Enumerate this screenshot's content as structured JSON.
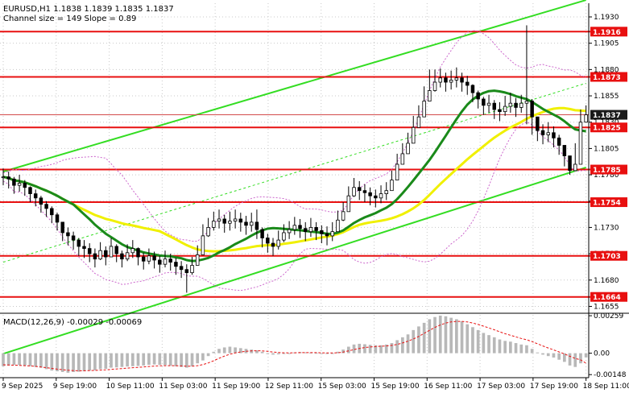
{
  "chart_data": [
    {
      "type": "candlestick",
      "symbol_header": "EURUSD,H1  1.1838 1.1839 1.1835 1.1837",
      "info_line": "Channel size = 149 Slope = 0.89",
      "ylim": [
        1.165,
        1.1943
      ],
      "y_ticks": [
        "1.1930",
        "1.1905",
        "1.1880",
        "1.1855",
        "1.1830",
        "1.1805",
        "1.1780",
        "1.1755",
        "1.1730",
        "1.1705",
        "1.1680",
        "1.1655"
      ],
      "x_ticks": [
        "9 Sep 2025",
        "9 Sep 19:00",
        "10 Sep 11:00",
        "11 Sep 03:00",
        "11 Sep 19:00",
        "12 Sep 11:00",
        "15 Sep 03:00",
        "15 Sep 19:00",
        "16 Sep 11:00",
        "17 Sep 03:00",
        "17 Sep 19:00",
        "18 Sep 11:00"
      ],
      "current_price": {
        "label": "1.1837",
        "value": 1.1837
      },
      "levels": [
        {
          "label": "1.1916",
          "value": 1.1916
        },
        {
          "label": "1.1873",
          "value": 1.1873
        },
        {
          "label": "1.1825",
          "value": 1.1825
        },
        {
          "label": "1.1785",
          "value": 1.1785
        },
        {
          "label": "1.1754",
          "value": 1.1754
        },
        {
          "label": "1.1703",
          "value": 1.1703
        },
        {
          "label": "1.1664",
          "value": 1.1664
        }
      ],
      "channel": {
        "upper": [
          [
            0,
            1.1783
          ],
          [
            108,
            1.1946
          ]
        ],
        "lower": [
          [
            0,
            1.161
          ],
          [
            108,
            1.1787
          ]
        ],
        "mid": [
          [
            0,
            1.1697
          ],
          [
            108,
            1.1867
          ]
        ]
      },
      "close": [
        1.1778,
        1.1776,
        1.177,
        1.1772,
        1.1768,
        1.1762,
        1.1758,
        1.1752,
        1.1748,
        1.1742,
        1.1735,
        1.1725,
        1.1722,
        1.1718,
        1.1712,
        1.171,
        1.1705,
        1.17,
        1.1708,
        1.1702,
        1.1712,
        1.1705,
        1.17,
        1.1706,
        1.171,
        1.1702,
        1.1698,
        1.1703,
        1.1699,
        1.1695,
        1.17,
        1.1697,
        1.1693,
        1.169,
        1.1687,
        1.1694,
        1.1704,
        1.1722,
        1.173,
        1.1736,
        1.1738,
        1.1734,
        1.1736,
        1.1738,
        1.1735,
        1.1732,
        1.1735,
        1.1728,
        1.172,
        1.1715,
        1.1712,
        1.1718,
        1.1725,
        1.1728,
        1.1732,
        1.1729,
        1.1726,
        1.173,
        1.1727,
        1.1724,
        1.1722,
        1.1726,
        1.1737,
        1.1745,
        1.176,
        1.1768,
        1.1765,
        1.1763,
        1.176,
        1.1758,
        1.1762,
        1.1765,
        1.1775,
        1.179,
        1.18,
        1.181,
        1.1825,
        1.1835,
        1.185,
        1.186,
        1.1868,
        1.1872,
        1.1868,
        1.187,
        1.1872,
        1.1868,
        1.1865,
        1.1858,
        1.1852,
        1.1846,
        1.1848,
        1.1842,
        1.184,
        1.1845,
        1.1848,
        1.1844,
        1.1848,
        1.185,
        1.1835,
        1.1822,
        1.1818,
        1.182,
        1.1815,
        1.1808,
        1.1798,
        1.1784,
        1.179,
        1.183,
        1.1837
      ],
      "high": [
        1.1786,
        1.1783,
        1.1778,
        1.178,
        1.1775,
        1.1769,
        1.1766,
        1.176,
        1.1755,
        1.175,
        1.1744,
        1.1734,
        1.173,
        1.1726,
        1.172,
        1.1718,
        1.1715,
        1.171,
        1.1716,
        1.1712,
        1.172,
        1.1714,
        1.1708,
        1.1714,
        1.1718,
        1.1711,
        1.1706,
        1.171,
        1.1707,
        1.1703,
        1.1708,
        1.1705,
        1.1701,
        1.1698,
        1.1695,
        1.1702,
        1.1713,
        1.1733,
        1.1739,
        1.1745,
        1.1747,
        1.1742,
        1.1745,
        1.1747,
        1.1744,
        1.1741,
        1.1744,
        1.1747,
        1.173,
        1.1724,
        1.172,
        1.1727,
        1.1733,
        1.1736,
        1.174,
        1.1738,
        1.1735,
        1.1739,
        1.1735,
        1.1732,
        1.1731,
        1.1735,
        1.1746,
        1.1754,
        1.1769,
        1.1777,
        1.1774,
        1.1771,
        1.1768,
        1.1766,
        1.177,
        1.1773,
        1.1784,
        1.18,
        1.181,
        1.182,
        1.1836,
        1.1846,
        1.1864,
        1.188,
        1.188,
        1.1881,
        1.1877,
        1.1879,
        1.1882,
        1.1877,
        1.1874,
        1.1866,
        1.186,
        1.1854,
        1.1856,
        1.1851,
        1.1849,
        1.1855,
        1.1858,
        1.1853,
        1.1856,
        1.1922,
        1.1852,
        1.1834,
        1.1828,
        1.183,
        1.1826,
        1.1818,
        1.1808,
        1.1795,
        1.181,
        1.1842,
        1.1846
      ],
      "low": [
        1.177,
        1.1767,
        1.1762,
        1.1764,
        1.176,
        1.1754,
        1.175,
        1.1744,
        1.174,
        1.1734,
        1.1727,
        1.1717,
        1.1713,
        1.1709,
        1.1703,
        1.1701,
        1.1697,
        1.1692,
        1.1699,
        1.1694,
        1.1703,
        1.1697,
        1.1692,
        1.1698,
        1.1701,
        1.1694,
        1.169,
        1.1695,
        1.1691,
        1.1687,
        1.1692,
        1.1689,
        1.1685,
        1.1682,
        1.1668,
        1.1685,
        1.1696,
        1.1713,
        1.1721,
        1.1727,
        1.1729,
        1.1725,
        1.1727,
        1.1729,
        1.1726,
        1.1723,
        1.1726,
        1.1719,
        1.1711,
        1.1706,
        1.1703,
        1.1709,
        1.1716,
        1.1719,
        1.1723,
        1.172,
        1.1717,
        1.1721,
        1.1718,
        1.1715,
        1.1713,
        1.1717,
        1.1728,
        1.1736,
        1.1751,
        1.1759,
        1.1756,
        1.1754,
        1.1751,
        1.1749,
        1.1753,
        1.1756,
        1.1766,
        1.1781,
        1.1791,
        1.1801,
        1.1816,
        1.1826,
        1.1841,
        1.1851,
        1.1859,
        1.1863,
        1.1859,
        1.1861,
        1.1863,
        1.1859,
        1.1856,
        1.1849,
        1.1843,
        1.1837,
        1.1839,
        1.1833,
        1.1831,
        1.1836,
        1.1839,
        1.1835,
        1.1839,
        1.1828,
        1.1818,
        1.1812,
        1.1809,
        1.1811,
        1.1806,
        1.1799,
        1.1788,
        1.178,
        1.1784,
        1.179,
        1.183
      ],
      "macd": {
        "label": "MACD(12,26,9) -0.00029 -0.00069",
        "ylim": [
          -0.00158,
          0.00265
        ],
        "y_ticks": [
          "0.00259",
          "0.00",
          "-0.00148"
        ],
        "histogram": [
          -0.0009,
          -0.00085,
          -0.0008,
          -0.00082,
          -0.00085,
          -0.0009,
          -0.00095,
          -0.001,
          -0.0011,
          -0.0012,
          -0.00125,
          -0.0013,
          -0.00135,
          -0.0013,
          -0.00128,
          -0.00125,
          -0.0012,
          -0.00118,
          -0.0011,
          -0.00108,
          -0.001,
          -0.00098,
          -0.00095,
          -0.00092,
          -0.0009,
          -0.00088,
          -0.00085,
          -0.0008,
          -0.00078,
          -0.0008,
          -0.00082,
          -0.00085,
          -0.0009,
          -0.00095,
          -0.001,
          -0.0009,
          -0.0007,
          -0.0005,
          -0.0002,
          0.0001,
          0.0003,
          0.0004,
          0.00045,
          0.0004,
          0.00035,
          0.0003,
          0.00025,
          0.0002,
          0.0001,
          0.0,
          -0.0001,
          -8e-05,
          -5e-05,
          0.0,
          5e-05,
          8e-05,
          6e-05,
          4e-05,
          2e-05,
          0.0,
          -3e-05,
          0.0,
          0.0001,
          0.00025,
          0.00045,
          0.0006,
          0.00065,
          0.00062,
          0.00058,
          0.00055,
          0.00055,
          0.0006,
          0.0007,
          0.0009,
          0.0011,
          0.0013,
          0.0016,
          0.00185,
          0.0021,
          0.00235,
          0.0025,
          0.0026,
          0.00255,
          0.00245,
          0.00235,
          0.0022,
          0.002,
          0.0018,
          0.0016,
          0.0014,
          0.00125,
          0.0011,
          0.00095,
          0.00085,
          0.0008,
          0.0007,
          0.0006,
          0.00055,
          0.0003,
          5e-05,
          -0.0001,
          -0.0002,
          -0.0003,
          -0.00045,
          -0.0006,
          -0.00085,
          -0.00095,
          -0.0007,
          -0.00029
        ],
        "signal": [
          -0.0008,
          -0.00082,
          -0.00083,
          -0.00084,
          -0.00086,
          -0.00088,
          -0.00091,
          -0.00095,
          -0.001,
          -0.00105,
          -0.0011,
          -0.00114,
          -0.00118,
          -0.0012,
          -0.00121,
          -0.00121,
          -0.0012,
          -0.00119,
          -0.00117,
          -0.00115,
          -0.00112,
          -0.00109,
          -0.00106,
          -0.00103,
          -0.001,
          -0.00098,
          -0.00095,
          -0.00092,
          -0.00089,
          -0.00087,
          -0.00086,
          -0.00086,
          -0.00087,
          -0.00088,
          -0.0009,
          -0.0009,
          -0.00086,
          -0.00079,
          -0.00067,
          -0.00052,
          -0.00035,
          -0.0002,
          -7e-05,
          2e-05,
          9e-05,
          0.00013,
          0.00016,
          0.00017,
          0.00016,
          0.00013,
          8e-05,
          5e-05,
          3e-05,
          2e-05,
          3e-05,
          4e-05,
          4e-05,
          4e-05,
          4e-05,
          3e-05,
          2e-05,
          2e-05,
          3e-05,
          8e-05,
          0.00016,
          0.00025,
          0.00033,
          0.00039,
          0.00043,
          0.00046,
          0.00048,
          0.0005,
          0.00054,
          0.00061,
          0.00071,
          0.00083,
          0.00098,
          0.00116,
          0.00137,
          0.00158,
          0.00178,
          0.00195,
          0.00208,
          0.00216,
          0.0022,
          0.0022,
          0.00216,
          0.00209,
          0.00199,
          0.00187,
          0.00175,
          0.00162,
          0.00148,
          0.00135,
          0.00124,
          0.00113,
          0.00102,
          0.00093,
          0.0008,
          0.00065,
          0.0005,
          0.00036,
          0.00023,
          9e-05,
          -5e-05,
          -0.00021,
          -0.00036,
          -0.00046,
          -0.00069
        ]
      }
    }
  ],
  "colors": {
    "background": "#ffffff",
    "candle_up": "#000000",
    "candle_down": "#000000",
    "level_line": "#e81010",
    "level_label_bg": "#e81010",
    "level_label_text": "#ffffff",
    "channel_line": "#33dd22",
    "channel_mid": "#33dd22",
    "ma_fast": "#1a8a1a",
    "ma_slow": "#f0f000",
    "bands": "#cc66cc",
    "macd_hist": "#b8b8b8",
    "macd_signal": "#e81010",
    "axis_text": "#000000",
    "current_price_line": "#d24b4b",
    "current_price_label_bg": "#1a1a1a"
  }
}
